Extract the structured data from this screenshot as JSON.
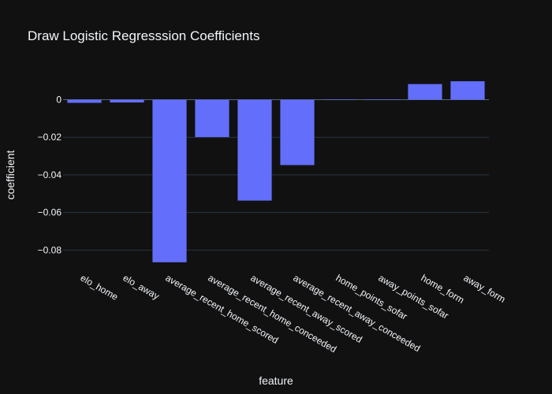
{
  "chart_data": {
    "type": "bar",
    "title": "Draw Logistic Regresssion Coefficients",
    "xlabel": "feature",
    "ylabel": "coefficient",
    "categories": [
      "elo_home",
      "elo_away",
      "average_recent_home_scored",
      "average_recent_home_conceeded",
      "average_recent_away_scored",
      "average_recent_away_conceeded",
      "home_points_sofar",
      "away_points_sofar",
      "home_form",
      "away_form"
    ],
    "values": [
      -0.0017,
      -0.0015,
      -0.0865,
      -0.0199,
      -0.0537,
      -0.0348,
      0.0002,
      0.0002,
      0.0083,
      0.0098
    ],
    "ylim": [
      -0.0895,
      0.0111
    ],
    "yticks": [
      0,
      -0.02,
      -0.04,
      -0.06,
      -0.08
    ],
    "ytick_labels": [
      "0",
      "−0.02",
      "−0.04",
      "−0.06",
      "−0.08"
    ],
    "bar_color": "#636efa",
    "background_color": "#111111",
    "grid": true
  }
}
